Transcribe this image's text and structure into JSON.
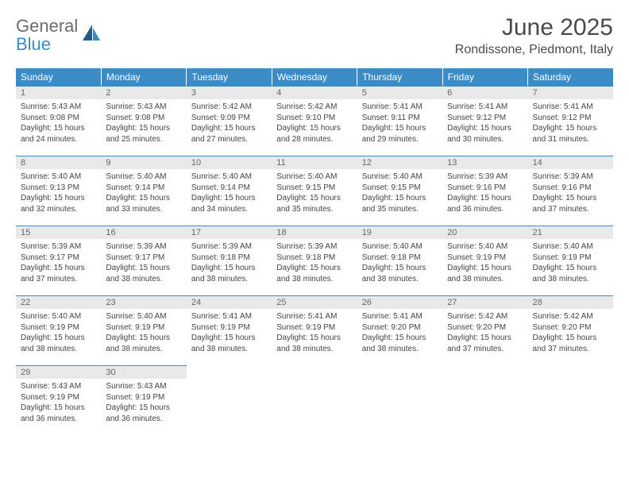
{
  "brand": {
    "general": "General",
    "blue": "Blue"
  },
  "title": "June 2025",
  "location": "Rondissone, Piedmont, Italy",
  "colors": {
    "header_bg": "#3b8bc4",
    "daynum_bg": "#e9e9e9",
    "border": "#3b8bc4"
  },
  "weekdays": [
    "Sunday",
    "Monday",
    "Tuesday",
    "Wednesday",
    "Thursday",
    "Friday",
    "Saturday"
  ],
  "weeks": [
    [
      {
        "n": "1",
        "sr": "Sunrise: 5:43 AM",
        "ss": "Sunset: 9:08 PM",
        "dl": "Daylight: 15 hours and 24 minutes."
      },
      {
        "n": "2",
        "sr": "Sunrise: 5:43 AM",
        "ss": "Sunset: 9:08 PM",
        "dl": "Daylight: 15 hours and 25 minutes."
      },
      {
        "n": "3",
        "sr": "Sunrise: 5:42 AM",
        "ss": "Sunset: 9:09 PM",
        "dl": "Daylight: 15 hours and 27 minutes."
      },
      {
        "n": "4",
        "sr": "Sunrise: 5:42 AM",
        "ss": "Sunset: 9:10 PM",
        "dl": "Daylight: 15 hours and 28 minutes."
      },
      {
        "n": "5",
        "sr": "Sunrise: 5:41 AM",
        "ss": "Sunset: 9:11 PM",
        "dl": "Daylight: 15 hours and 29 minutes."
      },
      {
        "n": "6",
        "sr": "Sunrise: 5:41 AM",
        "ss": "Sunset: 9:12 PM",
        "dl": "Daylight: 15 hours and 30 minutes."
      },
      {
        "n": "7",
        "sr": "Sunrise: 5:41 AM",
        "ss": "Sunset: 9:12 PM",
        "dl": "Daylight: 15 hours and 31 minutes."
      }
    ],
    [
      {
        "n": "8",
        "sr": "Sunrise: 5:40 AM",
        "ss": "Sunset: 9:13 PM",
        "dl": "Daylight: 15 hours and 32 minutes."
      },
      {
        "n": "9",
        "sr": "Sunrise: 5:40 AM",
        "ss": "Sunset: 9:14 PM",
        "dl": "Daylight: 15 hours and 33 minutes."
      },
      {
        "n": "10",
        "sr": "Sunrise: 5:40 AM",
        "ss": "Sunset: 9:14 PM",
        "dl": "Daylight: 15 hours and 34 minutes."
      },
      {
        "n": "11",
        "sr": "Sunrise: 5:40 AM",
        "ss": "Sunset: 9:15 PM",
        "dl": "Daylight: 15 hours and 35 minutes."
      },
      {
        "n": "12",
        "sr": "Sunrise: 5:40 AM",
        "ss": "Sunset: 9:15 PM",
        "dl": "Daylight: 15 hours and 35 minutes."
      },
      {
        "n": "13",
        "sr": "Sunrise: 5:39 AM",
        "ss": "Sunset: 9:16 PM",
        "dl": "Daylight: 15 hours and 36 minutes."
      },
      {
        "n": "14",
        "sr": "Sunrise: 5:39 AM",
        "ss": "Sunset: 9:16 PM",
        "dl": "Daylight: 15 hours and 37 minutes."
      }
    ],
    [
      {
        "n": "15",
        "sr": "Sunrise: 5:39 AM",
        "ss": "Sunset: 9:17 PM",
        "dl": "Daylight: 15 hours and 37 minutes."
      },
      {
        "n": "16",
        "sr": "Sunrise: 5:39 AM",
        "ss": "Sunset: 9:17 PM",
        "dl": "Daylight: 15 hours and 38 minutes."
      },
      {
        "n": "17",
        "sr": "Sunrise: 5:39 AM",
        "ss": "Sunset: 9:18 PM",
        "dl": "Daylight: 15 hours and 38 minutes."
      },
      {
        "n": "18",
        "sr": "Sunrise: 5:39 AM",
        "ss": "Sunset: 9:18 PM",
        "dl": "Daylight: 15 hours and 38 minutes."
      },
      {
        "n": "19",
        "sr": "Sunrise: 5:40 AM",
        "ss": "Sunset: 9:18 PM",
        "dl": "Daylight: 15 hours and 38 minutes."
      },
      {
        "n": "20",
        "sr": "Sunrise: 5:40 AM",
        "ss": "Sunset: 9:19 PM",
        "dl": "Daylight: 15 hours and 38 minutes."
      },
      {
        "n": "21",
        "sr": "Sunrise: 5:40 AM",
        "ss": "Sunset: 9:19 PM",
        "dl": "Daylight: 15 hours and 38 minutes."
      }
    ],
    [
      {
        "n": "22",
        "sr": "Sunrise: 5:40 AM",
        "ss": "Sunset: 9:19 PM",
        "dl": "Daylight: 15 hours and 38 minutes."
      },
      {
        "n": "23",
        "sr": "Sunrise: 5:40 AM",
        "ss": "Sunset: 9:19 PM",
        "dl": "Daylight: 15 hours and 38 minutes."
      },
      {
        "n": "24",
        "sr": "Sunrise: 5:41 AM",
        "ss": "Sunset: 9:19 PM",
        "dl": "Daylight: 15 hours and 38 minutes."
      },
      {
        "n": "25",
        "sr": "Sunrise: 5:41 AM",
        "ss": "Sunset: 9:19 PM",
        "dl": "Daylight: 15 hours and 38 minutes."
      },
      {
        "n": "26",
        "sr": "Sunrise: 5:41 AM",
        "ss": "Sunset: 9:20 PM",
        "dl": "Daylight: 15 hours and 38 minutes."
      },
      {
        "n": "27",
        "sr": "Sunrise: 5:42 AM",
        "ss": "Sunset: 9:20 PM",
        "dl": "Daylight: 15 hours and 37 minutes."
      },
      {
        "n": "28",
        "sr": "Sunrise: 5:42 AM",
        "ss": "Sunset: 9:20 PM",
        "dl": "Daylight: 15 hours and 37 minutes."
      }
    ],
    [
      {
        "n": "29",
        "sr": "Sunrise: 5:43 AM",
        "ss": "Sunset: 9:19 PM",
        "dl": "Daylight: 15 hours and 36 minutes."
      },
      {
        "n": "30",
        "sr": "Sunrise: 5:43 AM",
        "ss": "Sunset: 9:19 PM",
        "dl": "Daylight: 15 hours and 36 minutes."
      },
      null,
      null,
      null,
      null,
      null
    ]
  ]
}
